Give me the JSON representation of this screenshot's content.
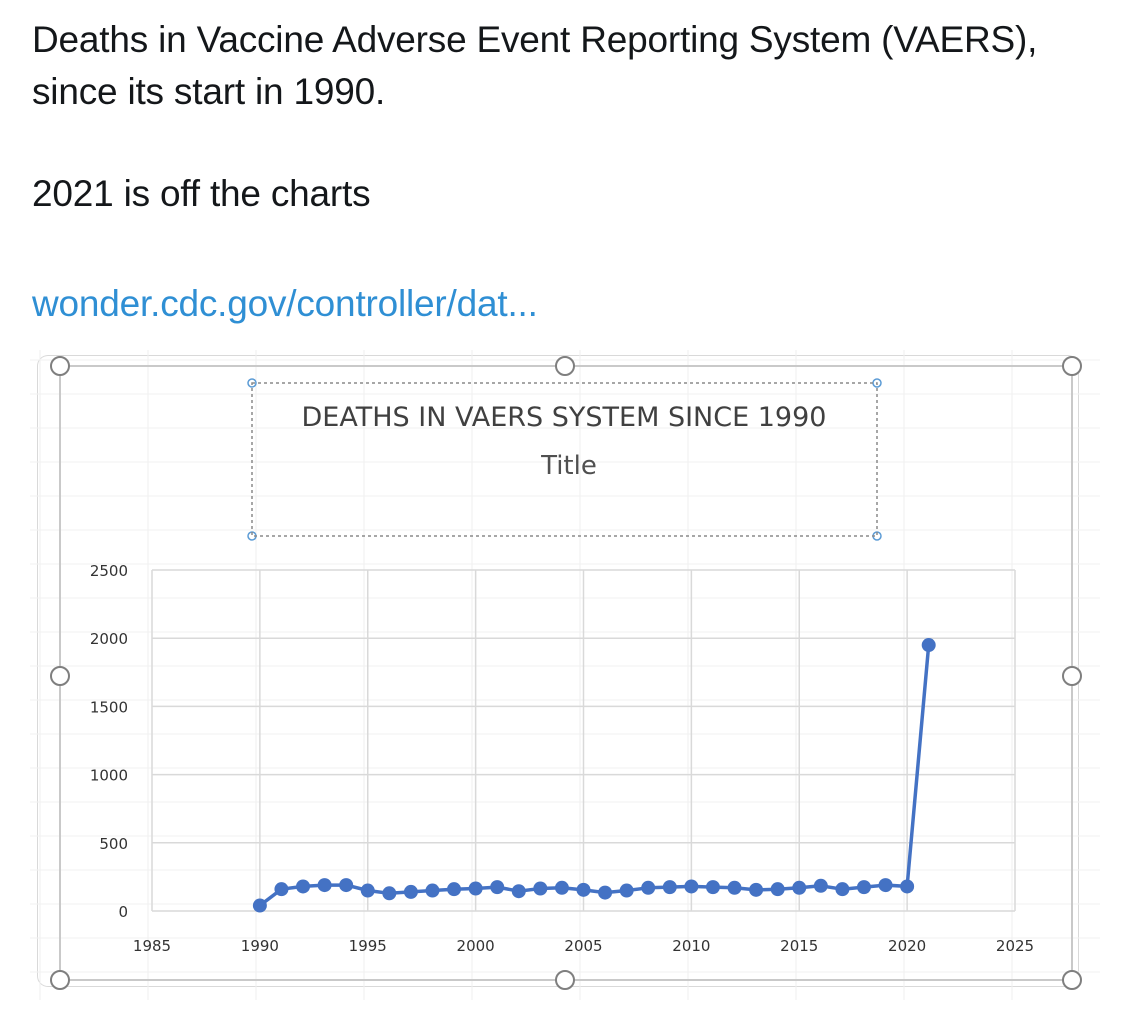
{
  "post": {
    "line1": "Deaths in Vaccine Adverse Event Reporting System (VAERS), since its start in 1990.",
    "line2": "2021 is off the charts",
    "link": "wonder.cdc.gov/controller/dat..."
  },
  "colors": {
    "series": "#4472c4",
    "link": "#2f8fd4",
    "grid": "#d9d9d9"
  },
  "chart_data": {
    "type": "line",
    "title": "DEATHS IN VAERS SYSTEM SINCE 1990",
    "subtitle": "Title",
    "xlabel": "",
    "ylabel": "",
    "xlim": [
      1985,
      2025
    ],
    "ylim": [
      0,
      2500
    ],
    "x_ticks": [
      1985,
      1990,
      1995,
      2000,
      2005,
      2010,
      2015,
      2020,
      2025
    ],
    "y_ticks": [
      0,
      500,
      1000,
      1500,
      2000,
      2500
    ],
    "grid": true,
    "legend": "none",
    "x": [
      1990,
      1991,
      1992,
      1993,
      1994,
      1995,
      1996,
      1997,
      1998,
      1999,
      2000,
      2001,
      2002,
      2003,
      2004,
      2005,
      2006,
      2007,
      2008,
      2009,
      2010,
      2011,
      2012,
      2013,
      2014,
      2015,
      2016,
      2017,
      2018,
      2019,
      2020,
      2021
    ],
    "y": [
      40,
      160,
      180,
      190,
      190,
      150,
      130,
      140,
      150,
      160,
      165,
      175,
      145,
      165,
      170,
      155,
      135,
      150,
      170,
      175,
      180,
      175,
      170,
      155,
      160,
      170,
      185,
      160,
      175,
      190,
      180,
      1950
    ]
  }
}
